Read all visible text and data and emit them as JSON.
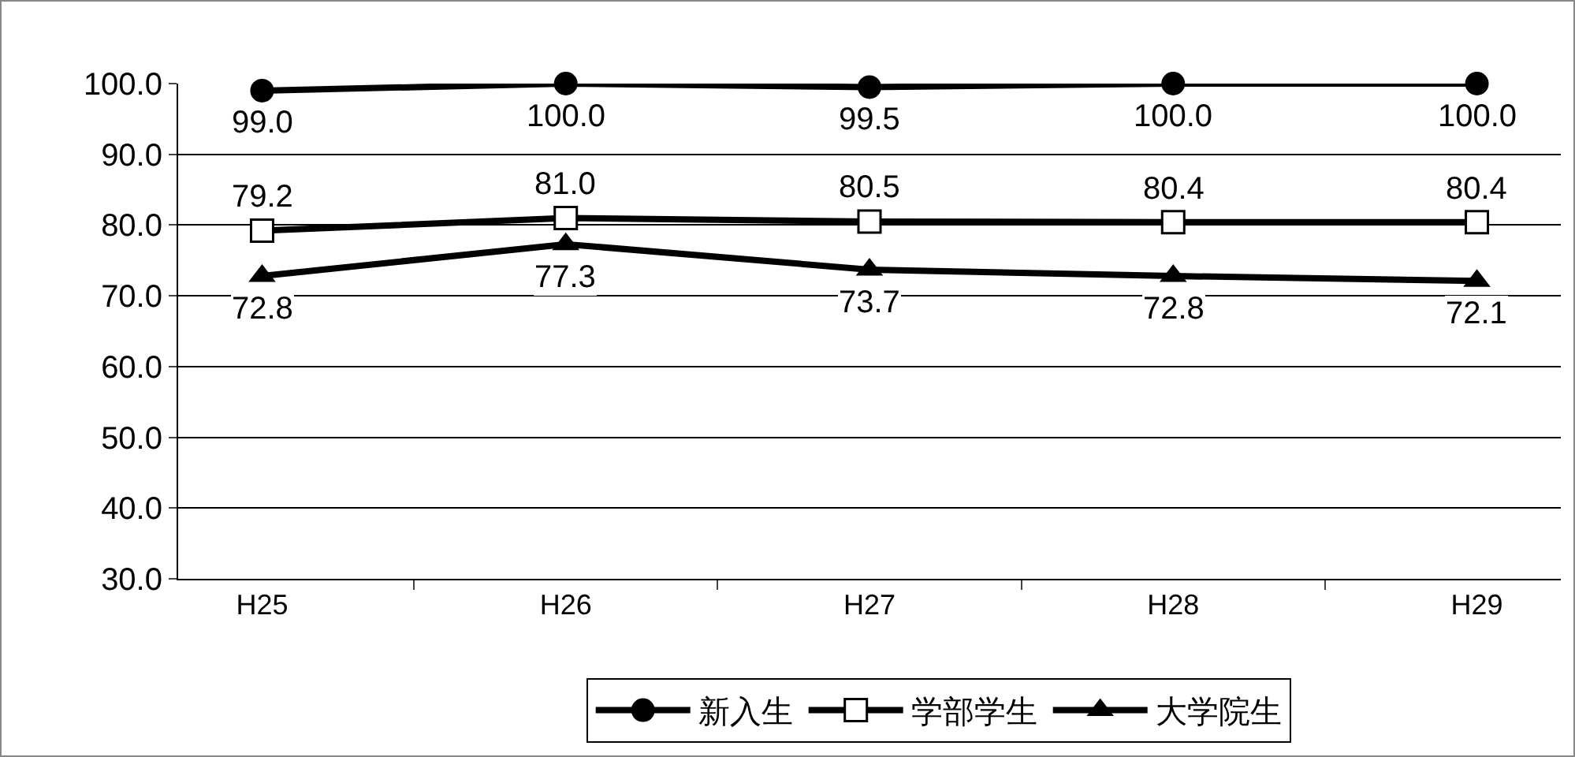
{
  "chart_data": {
    "type": "line",
    "categories": [
      "H25",
      "H26",
      "H27",
      "H28",
      "H29"
    ],
    "series": [
      {
        "name": "新入生",
        "color": "#000000",
        "marker": "circle",
        "values": [
          99.0,
          100.0,
          99.5,
          100.0,
          100.0
        ],
        "value_labels": [
          "99.0",
          "100.0",
          "99.5",
          "100.0",
          "100.0"
        ]
      },
      {
        "name": "学部学生",
        "color": "#000000",
        "marker": "square",
        "values": [
          79.2,
          81.0,
          80.5,
          80.4,
          80.4
        ],
        "value_labels": [
          "79.2",
          "81.0",
          "80.5",
          "80.4",
          "80.4"
        ]
      },
      {
        "name": "大学院生",
        "color": "#000000",
        "marker": "triangle",
        "values": [
          72.8,
          77.3,
          73.7,
          72.8,
          72.1
        ],
        "value_labels": [
          "72.8",
          "77.3",
          "73.7",
          "72.8",
          "72.1"
        ]
      }
    ],
    "ylim": [
      30,
      100
    ],
    "yticks": [
      {
        "value": 30,
        "label": "30.0"
      },
      {
        "value": 40,
        "label": "40.0"
      },
      {
        "value": 50,
        "label": "50.0"
      },
      {
        "value": 60,
        "label": "60.0"
      },
      {
        "value": 70,
        "label": "70.0"
      },
      {
        "value": 80,
        "label": "80.0"
      },
      {
        "value": 90,
        "label": "90.0"
      },
      {
        "value": 100,
        "label": "100.0"
      }
    ],
    "grid": "y",
    "legend": "bottom",
    "line_style": "solid"
  }
}
